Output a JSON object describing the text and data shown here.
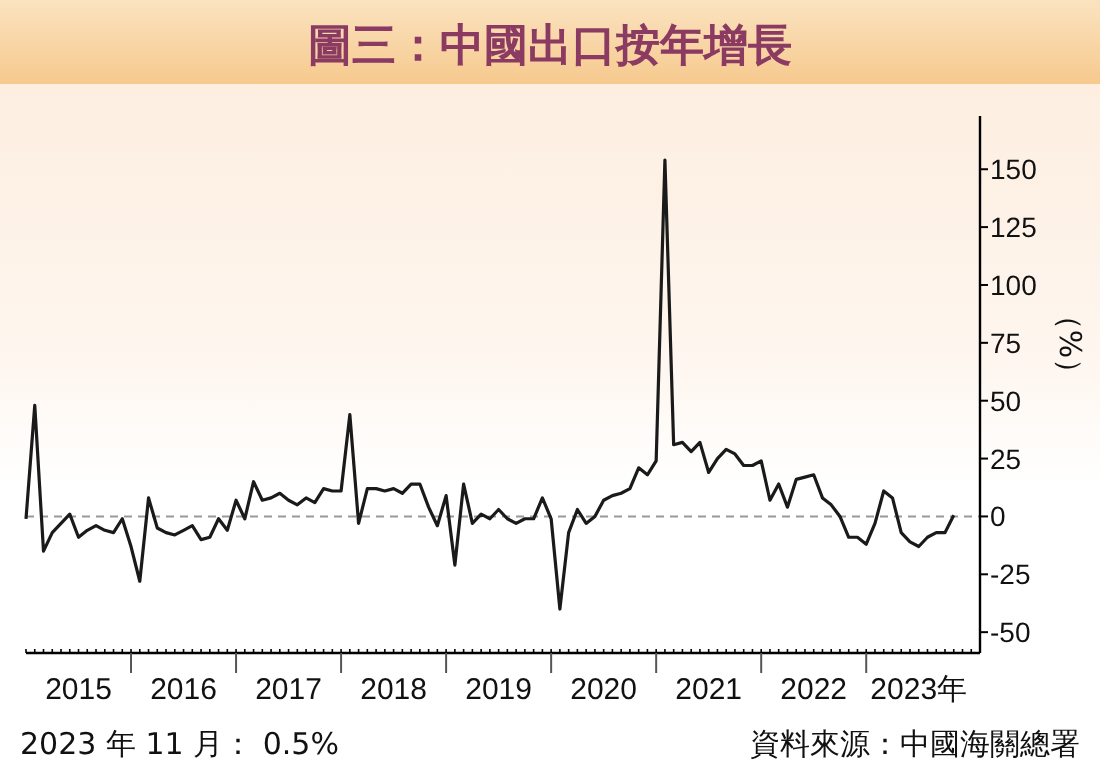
{
  "chart_data": {
    "type": "line",
    "title": "圖三：中國出口按年增長",
    "ylabel": "（%）",
    "annotations": [
      "2023 年 11 月： 0.5%",
      "資料來源：中國海關總署"
    ],
    "x": [
      "2015-01",
      "2015-02",
      "2015-03",
      "2015-04",
      "2015-05",
      "2015-06",
      "2015-07",
      "2015-08",
      "2015-09",
      "2015-10",
      "2015-11",
      "2015-12",
      "2016-01",
      "2016-02",
      "2016-03",
      "2016-04",
      "2016-05",
      "2016-06",
      "2016-07",
      "2016-08",
      "2016-09",
      "2016-10",
      "2016-11",
      "2016-12",
      "2017-01",
      "2017-02",
      "2017-03",
      "2017-04",
      "2017-05",
      "2017-06",
      "2017-07",
      "2017-08",
      "2017-09",
      "2017-10",
      "2017-11",
      "2017-12",
      "2018-01",
      "2018-02",
      "2018-03",
      "2018-04",
      "2018-05",
      "2018-06",
      "2018-07",
      "2018-08",
      "2018-09",
      "2018-10",
      "2018-11",
      "2018-12",
      "2019-01",
      "2019-02",
      "2019-03",
      "2019-04",
      "2019-05",
      "2019-06",
      "2019-07",
      "2019-08",
      "2019-09",
      "2019-10",
      "2019-11",
      "2019-12",
      "2020-01",
      "2020-02",
      "2020-03",
      "2020-04",
      "2020-05",
      "2020-06",
      "2020-07",
      "2020-08",
      "2020-09",
      "2020-10",
      "2020-11",
      "2020-12",
      "2021-01",
      "2021-02",
      "2021-03",
      "2021-04",
      "2021-05",
      "2021-06",
      "2021-07",
      "2021-08",
      "2021-09",
      "2021-10",
      "2021-11",
      "2021-12",
      "2022-01",
      "2022-02",
      "2022-03",
      "2022-04",
      "2022-05",
      "2022-06",
      "2022-07",
      "2022-08",
      "2022-09",
      "2022-10",
      "2022-11",
      "2022-12",
      "2023-01",
      "2023-02",
      "2023-03",
      "2023-04",
      "2023-05",
      "2023-06",
      "2023-07",
      "2023-08",
      "2023-09",
      "2023-10",
      "2023-11"
    ],
    "series": [
      {
        "color": "#1a1a1a",
        "values": [
          -1,
          48,
          -15,
          -7,
          -3,
          1,
          -9,
          -6,
          -4,
          -6,
          -7,
          -1,
          -13,
          -28,
          8,
          -5,
          -7,
          -8,
          -6,
          -4,
          -10,
          -9,
          -1,
          -6,
          7,
          -1,
          15,
          7,
          8,
          10,
          7,
          5,
          8,
          6,
          12,
          11,
          11,
          44,
          -3,
          12,
          12,
          11,
          12,
          10,
          14,
          14,
          4,
          -4,
          9,
          -21,
          14,
          -3,
          1,
          -1,
          3,
          -1,
          -3,
          -1,
          -1,
          8,
          -1,
          -40,
          -7,
          3,
          -3,
          0,
          7,
          9,
          10,
          12,
          21,
          18,
          24,
          154,
          31,
          32,
          28,
          32,
          19,
          25,
          29,
          27,
          22,
          22,
          24,
          7,
          14,
          4,
          16,
          17,
          18,
          8,
          5,
          0,
          -9,
          -9,
          -12,
          -3,
          11,
          8,
          -7,
          -11,
          -13,
          -9,
          -7,
          -7,
          0.5
        ]
      }
    ],
    "xlim": [
      "2015-01",
      "2024-02"
    ],
    "xticks": [
      {
        "value": "2015-07",
        "label": "2015"
      },
      {
        "value": "2016-01",
        "label": null
      },
      {
        "value": "2016-07",
        "label": "2016"
      },
      {
        "value": "2017-01",
        "label": null
      },
      {
        "value": "2017-07",
        "label": "2017"
      },
      {
        "value": "2018-01",
        "label": null
      },
      {
        "value": "2018-07",
        "label": "2018"
      },
      {
        "value": "2019-01",
        "label": null
      },
      {
        "value": "2019-07",
        "label": "2019"
      },
      {
        "value": "2020-01",
        "label": null
      },
      {
        "value": "2020-07",
        "label": "2020"
      },
      {
        "value": "2021-01",
        "label": null
      },
      {
        "value": "2021-07",
        "label": "2021"
      },
      {
        "value": "2022-01",
        "label": null
      },
      {
        "value": "2022-07",
        "label": "2022"
      },
      {
        "value": "2023-01",
        "label": null
      },
      {
        "value": "2023-07",
        "label": "2023年"
      }
    ],
    "ylim": [
      -59,
      173
    ],
    "yticks": [
      -50,
      -25,
      0,
      25,
      50,
      75,
      100,
      125,
      150
    ],
    "ref_lines": [
      {
        "axis": "y",
        "value": 0,
        "color": "#999999",
        "line_style": "dashed"
      }
    ],
    "grid": false,
    "marker": "none",
    "line_style": "solid"
  }
}
